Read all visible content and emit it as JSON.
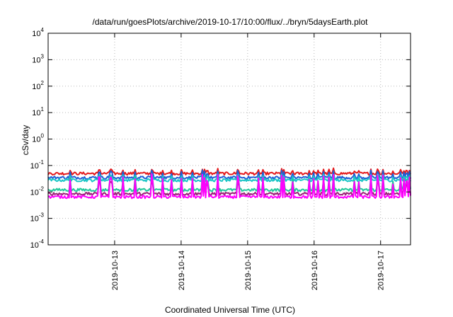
{
  "chart_data": {
    "type": "line",
    "title": "/data/run/goesPlots/archive/2019-10-17/10:00/flux/../bryn/5daysEarth.plot",
    "xlabel": "Coordinated Universal Time (UTC)",
    "ylabel": "cSv/day",
    "x_range_days": [
      12.0,
      17.45
    ],
    "x_ticks": [
      {
        "day": 13,
        "label": "2019-10-13"
      },
      {
        "day": 14,
        "label": "2019-10-14"
      },
      {
        "day": 15,
        "label": "2019-10-15"
      },
      {
        "day": 16,
        "label": "2019-10-16"
      },
      {
        "day": 17,
        "label": "2019-10-17"
      }
    ],
    "y_scale": "log",
    "ylim": [
      0.0001,
      10000
    ],
    "y_ticks": [
      {
        "base": "10",
        "exp": "4",
        "value": 10000
      },
      {
        "base": "10",
        "exp": "3",
        "value": 1000
      },
      {
        "base": "10",
        "exp": "2",
        "value": 100
      },
      {
        "base": "10",
        "exp": "1",
        "value": 10
      },
      {
        "base": "10",
        "exp": "0",
        "value": 1
      },
      {
        "base": "10",
        "exp": "-1",
        "value": 0.1
      },
      {
        "base": "10",
        "exp": "-2",
        "value": 0.01
      },
      {
        "base": "10",
        "exp": "-3",
        "value": 0.001
      },
      {
        "base": "10",
        "exp": "-4",
        "value": 0.0001
      }
    ],
    "grid": true,
    "legend": "none",
    "series": [
      {
        "color": "#e41a1c",
        "base": 0.05,
        "spike": 0.08
      },
      {
        "color": "#1f5fd6",
        "base": 0.035,
        "spike": 0.07
      },
      {
        "color": "#1bc6c6",
        "base": 0.028,
        "spike": 0.05
      },
      {
        "color": "#1fc79a",
        "base": 0.012,
        "spike": 0.045
      },
      {
        "color": "#9b1f78",
        "base": 0.0085,
        "spike": 0.035
      },
      {
        "color": "#ff00ff",
        "base": 0.0065,
        "spike": 0.05
      }
    ]
  }
}
